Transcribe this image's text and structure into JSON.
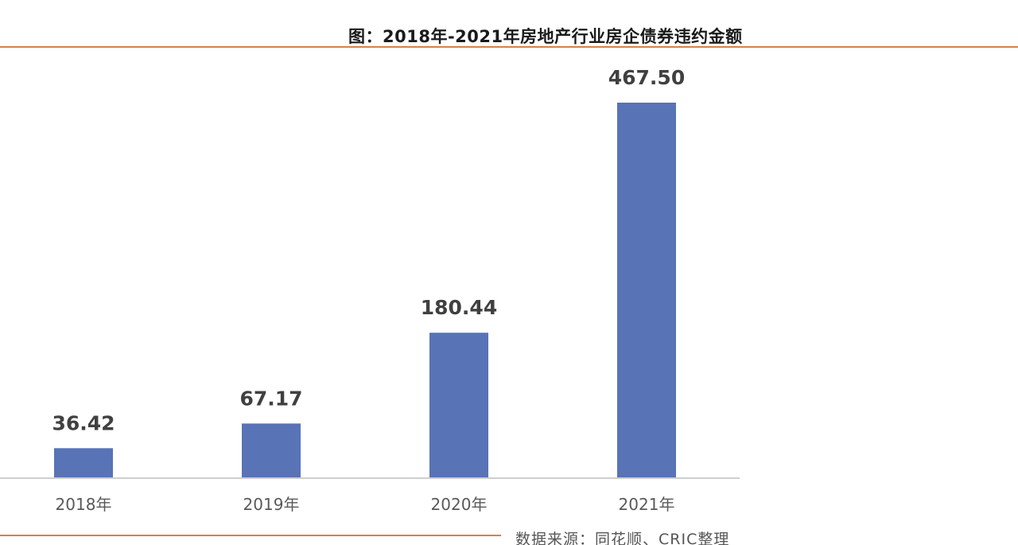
{
  "colors": {
    "bar": "#5873b6",
    "rule": "#d9804a",
    "axis": "#bdbdbd",
    "label": "#404040",
    "tick": "#595959"
  },
  "chart_data": {
    "type": "bar",
    "title": "图：2018年-2021年房地产行业房企债券违约金额",
    "categories": [
      "2018年",
      "2019年",
      "2020年",
      "2021年"
    ],
    "values": [
      36.42,
      67.17,
      180.44,
      467.5
    ],
    "value_labels": [
      "36.42",
      "67.17",
      "180.44",
      "467.50"
    ],
    "xlabel": "",
    "ylabel": "",
    "ylim": [
      0,
      467.5
    ],
    "grid": false,
    "legend": "none"
  },
  "footer": {
    "source": "数据来源：同花顺、CRIC整理"
  }
}
